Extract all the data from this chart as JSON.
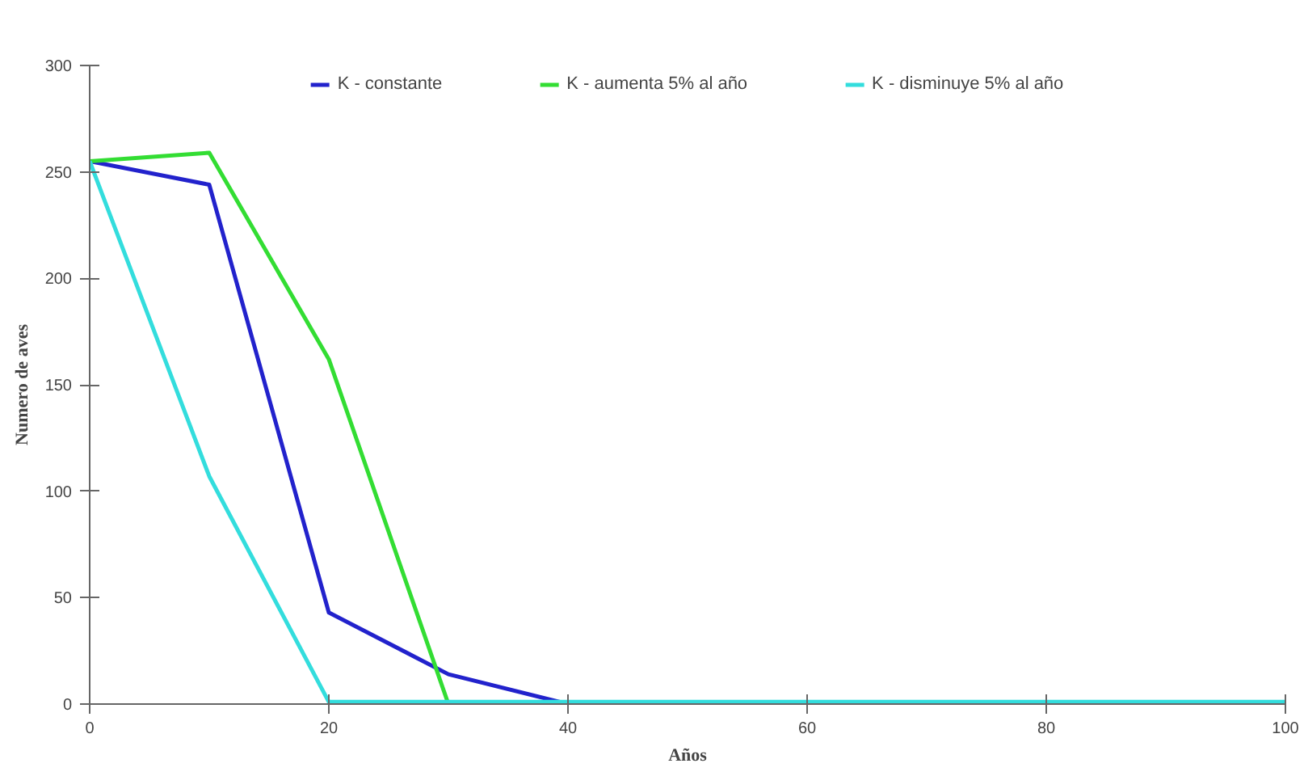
{
  "chart_data": {
    "type": "line",
    "xlabel": "Años",
    "ylabel": "Numero de aves",
    "series": [
      {
        "name": "K - constante",
        "color": "#2222cc",
        "x": [
          0,
          10,
          20,
          30,
          40
        ],
        "values": [
          255,
          244,
          43,
          14,
          0
        ]
      },
      {
        "name": "K - aumenta 5% al año",
        "color": "#33dd33",
        "x": [
          0,
          10,
          20,
          30
        ],
        "values": [
          255,
          259,
          162,
          0
        ]
      },
      {
        "name": "K - disminuye 5% al año",
        "color": "#33dddd",
        "x": [
          0,
          10,
          20,
          100
        ],
        "values": [
          255,
          107,
          1,
          1
        ]
      }
    ],
    "xlim": [
      0,
      100
    ],
    "ylim": [
      0,
      300
    ],
    "xticks": [
      0,
      20,
      40,
      60,
      80,
      100
    ],
    "yticks": [
      0,
      50,
      100,
      150,
      200,
      250,
      300
    ],
    "grid": false,
    "legend": "top",
    "marker": "none",
    "line_style": "solid"
  }
}
